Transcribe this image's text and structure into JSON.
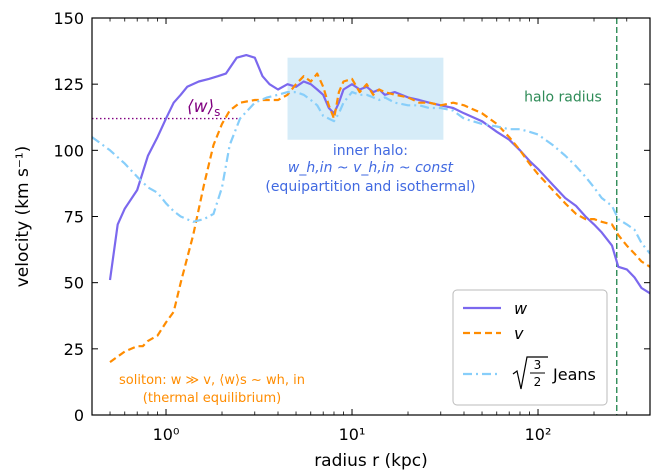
{
  "chart_data": {
    "type": "line",
    "xlabel": "radius r (kpc)",
    "ylabel": "velocity (km s⁻¹)",
    "xscale": "log",
    "xlim": [
      0.4,
      400
    ],
    "ylim": [
      0,
      150
    ],
    "xticks": [
      {
        "value": 1,
        "label": "10⁰"
      },
      {
        "value": 10,
        "label": "10¹"
      },
      {
        "value": 100,
        "label": "10²"
      }
    ],
    "yticks": [
      0,
      25,
      50,
      75,
      100,
      125,
      150
    ],
    "grid": false,
    "legend_position": "bottom-right",
    "colors": {
      "w": "#7b68ee",
      "v": "#ff8c00",
      "jeans": "#87cefa",
      "halo": "#2e8b57",
      "ws": "#800080",
      "inner": "#4169e1",
      "soliton": "#ff8c00",
      "box": "#cfe9f7"
    },
    "series": [
      {
        "key": "w",
        "name": "w",
        "style": "solid",
        "x": [
          0.5,
          0.55,
          0.6,
          0.7,
          0.8,
          0.9,
          1.0,
          1.1,
          1.2,
          1.3,
          1.5,
          1.7,
          1.9,
          2.1,
          2.4,
          2.7,
          3.0,
          3.3,
          3.6,
          4.0,
          4.5,
          5.0,
          5.5,
          6.0,
          6.5,
          7.0,
          7.5,
          8.0,
          8.5,
          9.0,
          10,
          11,
          12,
          13,
          14,
          15,
          17,
          20,
          23,
          26,
          30,
          35,
          40,
          50,
          60,
          70,
          80,
          90,
          100,
          120,
          140,
          160,
          180,
          200,
          220,
          250,
          270,
          300,
          330,
          360,
          400
        ],
        "y": [
          51,
          72,
          78,
          85,
          98,
          105,
          112,
          118,
          121,
          124,
          126,
          127,
          128,
          129,
          135,
          136,
          135,
          128,
          125,
          123,
          125,
          124,
          126,
          125,
          123,
          121,
          116,
          114,
          118,
          123,
          125,
          123,
          124,
          122,
          123,
          121,
          122,
          120,
          119,
          118,
          117,
          116,
          114,
          111,
          107,
          104,
          100,
          96,
          93,
          87,
          82,
          79,
          75,
          72,
          69,
          64,
          56,
          55,
          52,
          48,
          46
        ]
      },
      {
        "key": "v",
        "name": "v",
        "style": "dashed",
        "x": [
          0.5,
          0.6,
          0.7,
          0.75,
          0.8,
          0.9,
          1.0,
          1.1,
          1.2,
          1.4,
          1.6,
          1.8,
          2.0,
          2.2,
          2.5,
          3.0,
          3.5,
          4.0,
          4.5,
          5.0,
          5.5,
          6.0,
          6.5,
          7.0,
          7.5,
          8.0,
          8.5,
          9.0,
          10,
          11,
          12,
          13,
          14,
          15,
          17,
          20,
          23,
          26,
          30,
          35,
          40,
          50,
          60,
          70,
          80,
          90,
          100,
          120,
          140,
          160,
          180,
          200,
          220,
          250,
          270,
          300,
          330,
          360,
          400
        ],
        "y": [
          20,
          24,
          26,
          26,
          28,
          30,
          35,
          39,
          50,
          68,
          87,
          102,
          110,
          115,
          118,
          119,
          119,
          119,
          121,
          125,
          128,
          126,
          129,
          124,
          117,
          112,
          122,
          126,
          127,
          122,
          125,
          121,
          123,
          122,
          121,
          120,
          118,
          118,
          117,
          118,
          117,
          114,
          110,
          105,
          100,
          95,
          91,
          85,
          80,
          76,
          74,
          74,
          73,
          72,
          68,
          64,
          61,
          58,
          56
        ]
      },
      {
        "key": "jeans",
        "name": "Jeans",
        "style": "dashdot",
        "x": [
          0.4,
          0.5,
          0.6,
          0.7,
          0.8,
          0.9,
          1.0,
          1.1,
          1.2,
          1.4,
          1.6,
          1.8,
          2.0,
          2.2,
          2.5,
          3.0,
          3.5,
          4.0,
          4.5,
          5.0,
          5.5,
          6.0,
          6.5,
          7.0,
          7.5,
          8.0,
          8.5,
          9.0,
          10,
          11,
          12,
          13,
          14,
          15,
          17,
          20,
          23,
          26,
          30,
          35,
          40,
          50,
          60,
          70,
          80,
          90,
          100,
          120,
          140,
          160,
          180,
          200,
          220,
          250,
          270,
          300,
          330,
          360,
          400
        ],
        "y": [
          105,
          100,
          95,
          90,
          86,
          84,
          80,
          77,
          75,
          73,
          74,
          76,
          86,
          102,
          112,
          118,
          120,
          121,
          122,
          122,
          121,
          119,
          117,
          113,
          112,
          111,
          114,
          118,
          122,
          121,
          121,
          120,
          119,
          120,
          118,
          117,
          117,
          116,
          116,
          115,
          112,
          110,
          109,
          108,
          108,
          107,
          106,
          102,
          98,
          94,
          90,
          86,
          82,
          79,
          74,
          72,
          70,
          65,
          61
        ]
      }
    ],
    "legend_entries": [
      {
        "key": "w",
        "label": "w",
        "style": "solid"
      },
      {
        "key": "v",
        "label": "v",
        "style": "dashed"
      },
      {
        "key": "jeans",
        "label": "Jeans",
        "style": "dashdot"
      }
    ],
    "annotations": {
      "halo_radius_x": 265,
      "halo_radius_label": "halo radius",
      "ws_value": 112,
      "ws_label": "⟨w⟩",
      "ws_subscript": "s",
      "inner_box_x": [
        4.5,
        31
      ],
      "inner_box_y": [
        104,
        135
      ],
      "inner_line1": "inner halo:",
      "inner_line2": "w_h,in ~ v_h,in ~ const",
      "inner_line3": "(equipartition and isothermal)",
      "soliton_line1": "soliton: w ≫ v, ⟨w⟩s ~ wh, in",
      "soliton_line2": "(thermal equilibrium)"
    }
  }
}
